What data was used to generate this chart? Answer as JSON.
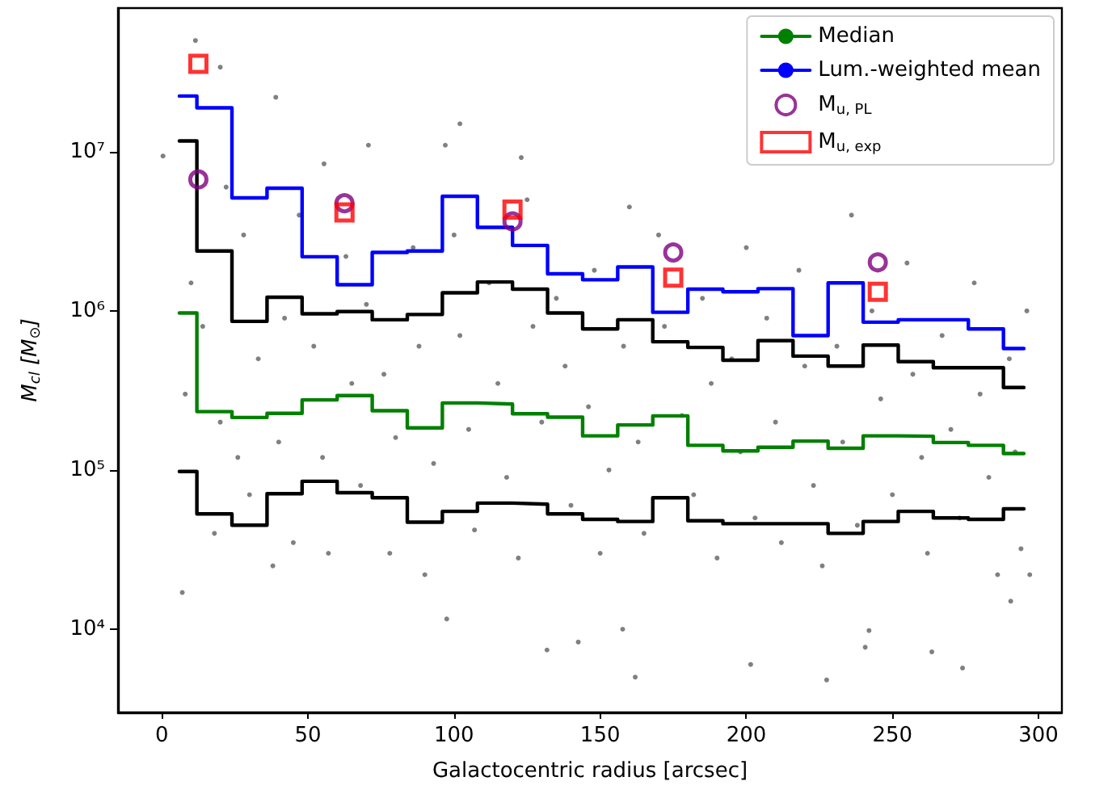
{
  "chart_data": {
    "type": "scatter",
    "xlabel": "Galactocentric radius [arcsec]",
    "ylabel": "M$_{cl}$ [M$_{⊙}$]",
    "log": "y",
    "xlim": [
      -15,
      308
    ],
    "xticks": [
      0,
      50,
      100,
      150,
      200,
      250,
      300
    ],
    "ylim": [
      3000,
      80000000
    ],
    "yticks": [
      {
        "value": 10000,
        "label": "10⁴"
      },
      {
        "value": 100000,
        "label": "10⁵"
      },
      {
        "value": 1000000,
        "label": "10⁶"
      },
      {
        "value": 10000000,
        "label": "10⁷"
      }
    ],
    "grid": false,
    "legend": "top right",
    "series": [
      {
        "color": "#808080",
        "marker": "circle",
        "x": [
          11.5,
          20,
          39,
          102,
          97,
          70.7,
          123,
          55.5,
          0.4,
          131.8,
          142.5,
          162,
          201.5,
          227.5,
          240.7,
          263.5,
          274,
          157.7,
          242,
          7,
          297,
          97.5,
          290.5,
          8,
          10,
          14,
          18,
          20,
          22,
          26,
          28,
          30,
          33,
          38,
          40,
          42,
          45,
          47,
          52,
          55,
          57,
          63,
          65,
          68,
          70,
          76,
          78,
          80,
          86,
          88,
          90,
          93,
          100,
          102,
          105,
          107,
          112,
          115,
          118,
          122,
          125,
          127,
          130,
          135,
          138,
          140,
          146,
          148,
          150,
          153,
          158,
          160,
          163,
          165,
          170,
          172,
          178,
          182,
          185,
          188,
          190,
          195,
          198,
          200,
          203,
          207,
          210,
          212,
          218,
          220,
          223,
          226,
          231,
          233,
          236,
          238,
          243,
          246,
          250,
          255,
          257,
          260,
          262,
          267,
          270,
          273,
          278,
          280,
          283,
          286,
          290,
          292,
          294,
          296
        ],
        "values": [
          50000000,
          34000000,
          22000000,
          15000000,
          11000000,
          11000000,
          9200000,
          8400000,
          9400000,
          7400,
          8300,
          5000,
          6000,
          4800,
          7700,
          7200,
          5700,
          10000,
          9800,
          17000,
          22000,
          11600,
          15000,
          300000,
          1500000,
          800000,
          40000,
          200000,
          6000000,
          120000,
          3000000,
          70000,
          500000,
          25000,
          150000,
          900000,
          35000,
          4000000,
          600000,
          120000,
          30000,
          2200000,
          350000,
          80000,
          1100000,
          400000,
          30000,
          160000,
          2500000,
          600000,
          22000,
          110000,
          3000000,
          700000,
          180000,
          42000,
          1500000,
          350000,
          90000,
          28000,
          5000000,
          800000,
          200000,
          1200000,
          450000,
          60000,
          250000,
          1800000,
          30000,
          100000,
          600000,
          4500000,
          150000,
          40000,
          3000000,
          800000,
          220000,
          70000,
          1200000,
          350000,
          28000,
          500000,
          130000,
          2500000,
          50000,
          900000,
          200000,
          35000,
          1800000,
          450000,
          80000,
          25000,
          600000,
          150000,
          4000000,
          45000,
          1000000,
          280000,
          70000,
          2000000,
          400000,
          120000,
          30000,
          700000,
          180000,
          50000,
          1500000,
          300000,
          90000,
          22000,
          500000,
          130000,
          32000,
          1000000
        ]
      },
      {
        "type": "step",
        "color": "#000000",
        "marker": "none",
        "line_style": "solid",
        "x": [
          6,
          12,
          24,
          36,
          48,
          60,
          72,
          84,
          96,
          108,
          120,
          132,
          144,
          156,
          168,
          180,
          192,
          204,
          216,
          228,
          240,
          252,
          264,
          276,
          288,
          295
        ],
        "values": [
          11700000,
          2380000,
          860000,
          1220000,
          960000,
          990000,
          880000,
          950000,
          1300000,
          1520000,
          1370000,
          970000,
          770000,
          880000,
          640000,
          590000,
          490000,
          650000,
          520000,
          450000,
          610000,
          480000,
          440000,
          440000,
          330000,
          330000
        ]
      },
      {
        "type": "step",
        "color": "#000000",
        "marker": "none",
        "line_style": "solid",
        "x": [
          6,
          12,
          24,
          36,
          48,
          60,
          72,
          84,
          96,
          108,
          120,
          132,
          144,
          156,
          168,
          180,
          192,
          204,
          216,
          228,
          240,
          252,
          264,
          276,
          288,
          295
        ],
        "values": [
          98000,
          53000,
          45000,
          71000,
          85000,
          72000,
          67000,
          47000,
          55000,
          62000,
          61000,
          53000,
          49000,
          47500,
          67000,
          48000,
          46000,
          46000,
          46000,
          40000,
          47500,
          55000,
          50000,
          49000,
          57000,
          57000
        ]
      },
      {
        "type": "step",
        "name": "Median",
        "color": "#008000",
        "marker": "none",
        "line_style": "solid",
        "x": [
          6,
          12,
          24,
          36,
          48,
          60,
          72,
          84,
          96,
          108,
          120,
          132,
          144,
          156,
          168,
          180,
          192,
          204,
          216,
          228,
          240,
          252,
          264,
          276,
          288,
          295
        ],
        "values": [
          970000,
          233000,
          214000,
          227000,
          276000,
          294000,
          236000,
          184000,
          264000,
          260000,
          226000,
          215000,
          164000,
          192000,
          219000,
          143000,
          132000,
          139000,
          152000,
          137000,
          164000,
          163000,
          149000,
          143000,
          127000,
          127000
        ]
      },
      {
        "type": "step",
        "name": "Lum.-weighted mean",
        "color": "#0000ff",
        "marker": "none",
        "line_style": "solid",
        "x": [
          6,
          12,
          24,
          36,
          48,
          60,
          72,
          84,
          96,
          108,
          120,
          132,
          144,
          156,
          168,
          180,
          192,
          204,
          216,
          228,
          240,
          252,
          264,
          276,
          288,
          295
        ],
        "values": [
          22400000,
          18900000,
          5130000,
          5900000,
          2190000,
          1460000,
          2330000,
          2380000,
          5250000,
          3350000,
          2580000,
          1710000,
          1570000,
          1890000,
          980000,
          1370000,
          1320000,
          1380000,
          700000,
          1500000,
          850000,
          880000,
          880000,
          770000,
          580000,
          580000
        ]
      },
      {
        "name": "M$_{u, PL}$",
        "color": "#800080",
        "marker": "circle",
        "x": [
          12.5,
          62.5,
          120,
          175,
          245
        ],
        "values": [
          6700000,
          4750000,
          3650000,
          2330000,
          2020000
        ]
      },
      {
        "name": "M$_{u, exp}$",
        "color": "#ff0000",
        "marker": "square",
        "x": [
          12.5,
          62.5,
          120,
          175,
          245
        ],
        "values": [
          35700000,
          4160000,
          4330000,
          1620000,
          1320000
        ]
      }
    ]
  }
}
